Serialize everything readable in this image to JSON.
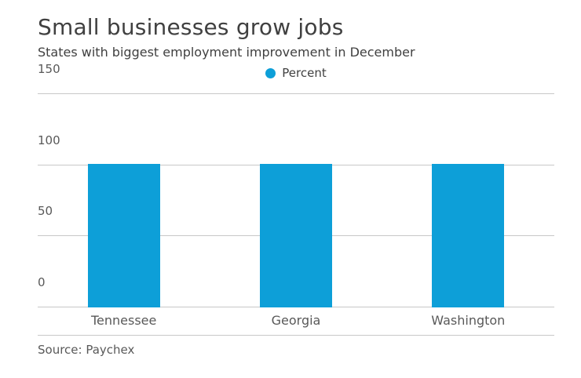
{
  "header": {
    "title": "Small businesses grow jobs",
    "subtitle": "States with biggest employment improvement in December"
  },
  "legend": {
    "label": "Percent",
    "dot_color": "#0d9fd8"
  },
  "source": "Source: Paychex",
  "chart_data": {
    "type": "bar",
    "title": "Small businesses grow jobs",
    "subtitle": "States with biggest employment improvement in December",
    "categories": [
      "Tennessee",
      "Georgia",
      "Washington"
    ],
    "values": [
      101,
      101,
      101
    ],
    "series_name": "Percent",
    "xlabel": "",
    "ylabel": "",
    "ylim": [
      0,
      150
    ],
    "yticks": [
      0,
      50,
      100,
      150
    ],
    "bar_color": "#0d9fd8",
    "grid": true,
    "legend_position": "top-center",
    "source": "Source: Paychex"
  }
}
